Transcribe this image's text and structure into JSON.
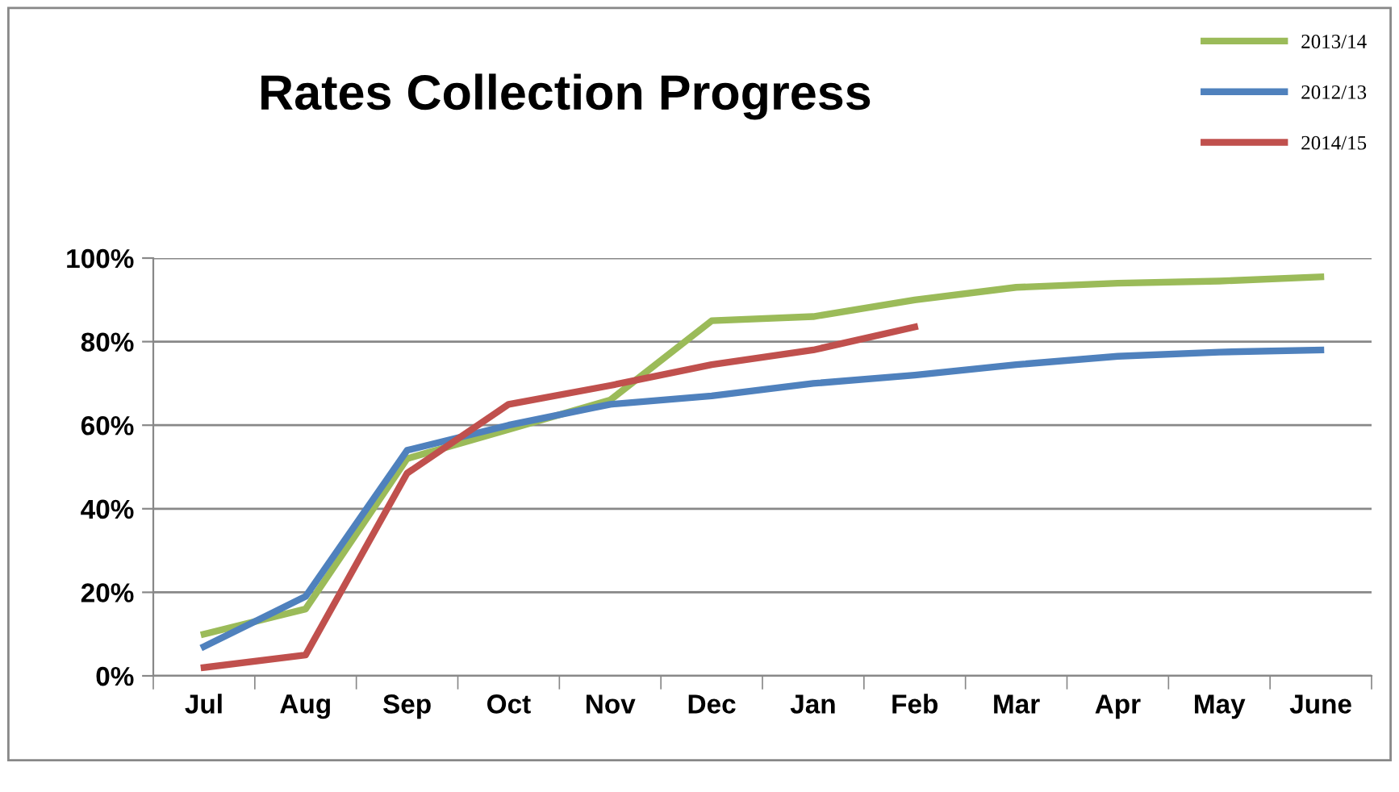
{
  "chart_data": {
    "type": "line",
    "title": "Rates Collection Progress",
    "categories": [
      "Jul",
      "Aug",
      "Sep",
      "Oct",
      "Nov",
      "Dec",
      "Jan",
      "Feb",
      "Mar",
      "Apr",
      "May",
      "June"
    ],
    "series": [
      {
        "name": "2013/14",
        "color": "#9bbb59",
        "values": [
          10,
          16,
          52,
          59,
          66,
          85,
          86,
          90,
          93,
          94,
          94.5,
          95.5
        ]
      },
      {
        "name": "2012/13",
        "color": "#4f81bd",
        "values": [
          7,
          19,
          54,
          60,
          65,
          67,
          70,
          72,
          74.5,
          76.5,
          77.5,
          78
        ]
      },
      {
        "name": "2014/15",
        "color": "#c0504d",
        "values": [
          2,
          5,
          48.5,
          65,
          69.5,
          74.5,
          78,
          83.5,
          null,
          null,
          null,
          null
        ]
      }
    ],
    "ylim": [
      0,
      100
    ],
    "yticks": [
      {
        "value": 0,
        "label": "0%"
      },
      {
        "value": 20,
        "label": "20%"
      },
      {
        "value": 40,
        "label": "40%"
      },
      {
        "value": 60,
        "label": "60%"
      },
      {
        "value": 80,
        "label": "80%"
      },
      {
        "value": 100,
        "label": "100%"
      }
    ],
    "grid": "y",
    "legend": "top right",
    "marker": "none",
    "line_style": "solid"
  }
}
